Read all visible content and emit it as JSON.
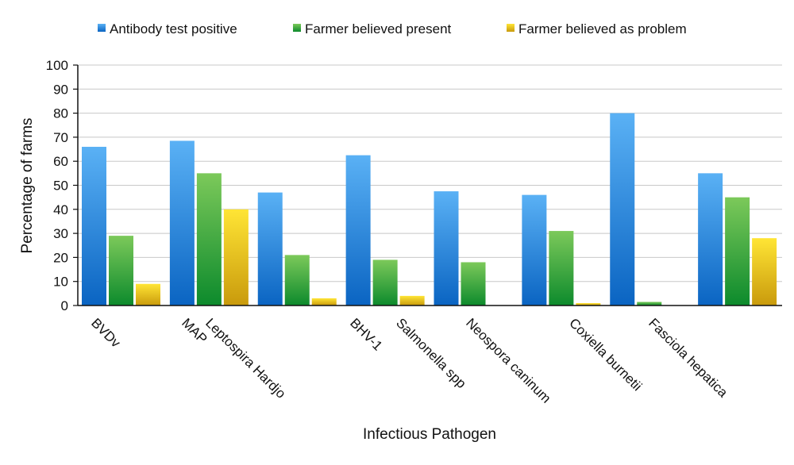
{
  "chart_data": {
    "type": "bar",
    "xlabel": "Infectious Pathogen",
    "ylabel": "Percentage of farms",
    "ylim": [
      0,
      100
    ],
    "yticks": [
      0,
      10,
      20,
      30,
      40,
      50,
      60,
      70,
      80,
      90,
      100
    ],
    "grid": true,
    "legend_position": "top",
    "categories": [
      "BVDv",
      "MAP",
      "Leptospira Hardjo",
      "BHV-1",
      "Salmonella spp",
      "Neospora caninum",
      "Coxiella burnetii",
      "Fasciola hepatica"
    ],
    "series": [
      {
        "name": "Antibody test positive",
        "color": "#2b8fe6",
        "values": [
          66,
          68.5,
          47,
          62.5,
          47.5,
          46,
          80,
          55
        ]
      },
      {
        "name": "Farmer believed present",
        "color": "#3aa93a",
        "values": [
          29,
          55,
          21,
          19,
          18,
          31,
          1.5,
          45
        ]
      },
      {
        "name": "Farmer believed as problem",
        "color": "#f0cc1a",
        "values": [
          9,
          40,
          3,
          4,
          0,
          1,
          0,
          28
        ]
      }
    ]
  }
}
